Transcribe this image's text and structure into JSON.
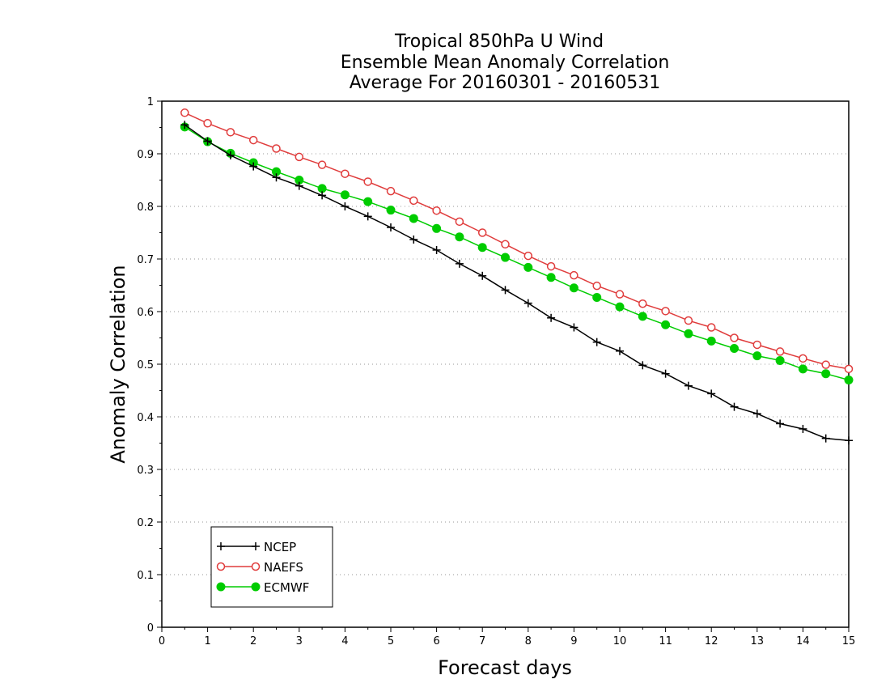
{
  "chart_data": {
    "type": "line",
    "title": [
      "Tropical 850hPa U Wind",
      "Ensemble Mean Anomaly Correlation",
      "Average For 20160301 - 20160531"
    ],
    "xlabel": "Forecast days",
    "ylabel": "Anomaly Correlation",
    "xlim": [
      0,
      15
    ],
    "ylim": [
      0,
      1
    ],
    "x_ticks": [
      "0",
      "1",
      "2",
      "3",
      "4",
      "5",
      "6",
      "7",
      "8",
      "9",
      "10",
      "11",
      "12",
      "13",
      "14",
      "15"
    ],
    "y_ticks": [
      "0",
      "0.1",
      "0.2",
      "0.3",
      "0.4",
      "0.5",
      "0.6",
      "0.7",
      "0.8",
      "0.9",
      "1"
    ],
    "grid": "horizontal dotted",
    "legend_position": "bottom-left",
    "x": [
      0.5,
      1,
      1.5,
      2,
      2.5,
      3,
      3.5,
      4,
      4.5,
      5,
      5.5,
      6,
      6.5,
      7,
      7.5,
      8,
      8.5,
      9,
      9.5,
      10,
      10.5,
      11,
      11.5,
      12,
      12.5,
      13,
      13.5,
      14,
      14.5,
      15
    ],
    "series": [
      {
        "name": "NCEP",
        "color": "#000000",
        "marker": "plus",
        "values": [
          0.955,
          0.924,
          0.897,
          0.876,
          0.855,
          0.839,
          0.821,
          0.8,
          0.781,
          0.76,
          0.737,
          0.717,
          0.691,
          0.668,
          0.641,
          0.616,
          0.588,
          0.57,
          0.542,
          0.525,
          0.498,
          0.482,
          0.459,
          0.444,
          0.419,
          0.406,
          0.387,
          0.377,
          0.359,
          0.355
        ]
      },
      {
        "name": "NAEFS",
        "color": "#e03c3c",
        "marker": "open-circle",
        "values": [
          0.978,
          0.958,
          0.941,
          0.926,
          0.91,
          0.894,
          0.879,
          0.862,
          0.847,
          0.829,
          0.811,
          0.792,
          0.771,
          0.75,
          0.728,
          0.706,
          0.686,
          0.669,
          0.649,
          0.633,
          0.615,
          0.601,
          0.583,
          0.57,
          0.55,
          0.537,
          0.524,
          0.511,
          0.499,
          0.491
        ]
      },
      {
        "name": "ECMWF",
        "color": "#00cc00",
        "marker": "filled-circle",
        "values": [
          0.951,
          0.923,
          0.901,
          0.883,
          0.866,
          0.85,
          0.834,
          0.822,
          0.809,
          0.793,
          0.777,
          0.758,
          0.742,
          0.722,
          0.703,
          0.684,
          0.665,
          0.645,
          0.627,
          0.609,
          0.591,
          0.575,
          0.558,
          0.544,
          0.53,
          0.516,
          0.507,
          0.491,
          0.482,
          0.47
        ]
      }
    ]
  }
}
